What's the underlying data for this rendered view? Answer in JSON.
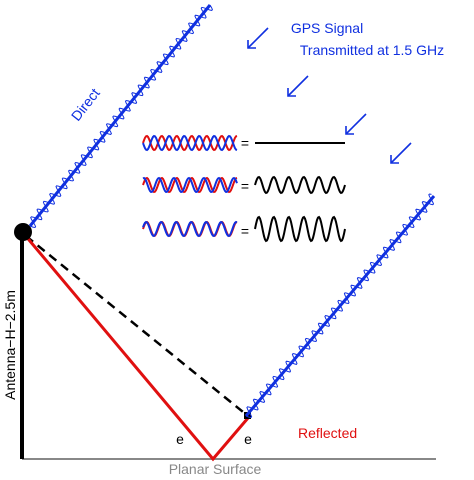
{
  "signal": {
    "line1": "GPS Signal",
    "line2": "Transmitted at 1.5 GHz"
  },
  "labels": {
    "direct": "Direct",
    "reflected": "Reflected",
    "antenna": "Antenna−H−2.5m",
    "surface": "Planar Surface",
    "angle_left": "e",
    "angle_right": "e"
  },
  "interference": [
    {
      "operator": "="
    },
    {
      "operator": "="
    },
    {
      "operator": "="
    }
  ]
}
